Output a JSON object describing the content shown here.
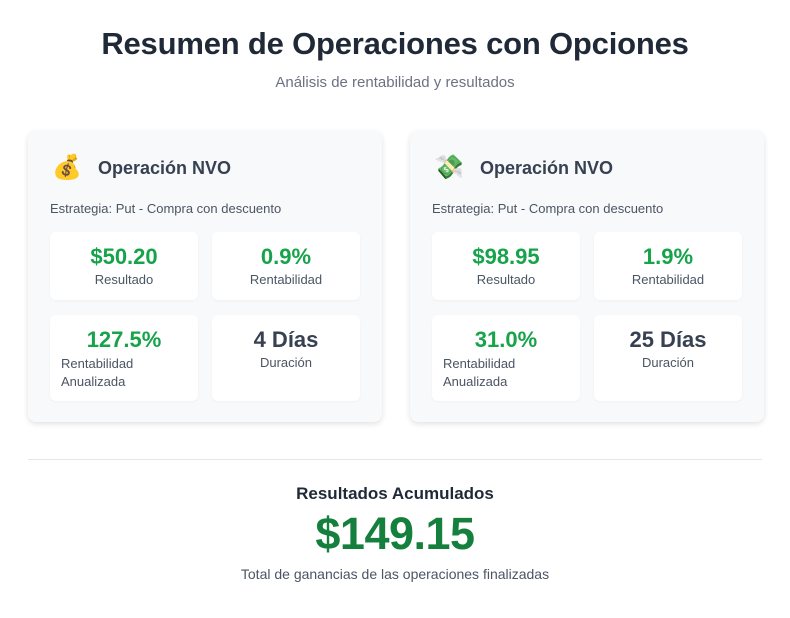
{
  "header": {
    "title": "Resumen de Operaciones con Opciones",
    "subtitle": "Análisis de rentabilidad y resultados"
  },
  "operations": [
    {
      "icon": "money-bag-icon",
      "icon_glyph": "💰",
      "title": "Operación NVO",
      "strategy": "Estrategia: Put - Compra con descuento",
      "result_value": "$50.20",
      "result_label": "Resultado",
      "return_value": "0.9%",
      "return_label": "Rentabilidad",
      "annualized_value": "127.5%",
      "annualized_label": "Rentabilidad Anualizada",
      "duration_value": "4 Días",
      "duration_label": "Duración"
    },
    {
      "icon": "money-with-wings-icon",
      "icon_glyph": "💸",
      "title": "Operación NVO",
      "strategy": "Estrategia: Put - Compra con descuento",
      "result_value": "$98.95",
      "result_label": "Resultado",
      "return_value": "1.9%",
      "return_label": "Rentabilidad",
      "annualized_value": "31.0%",
      "annualized_label": "Rentabilidad Anualizada",
      "duration_value": "25 Días",
      "duration_label": "Duración"
    }
  ],
  "accumulated": {
    "title": "Resultados Acumulados",
    "value": "$149.15",
    "note": "Total de ganancias de las operaciones finalizadas"
  },
  "colors": {
    "positive": "#16a34a",
    "total": "#15803d",
    "card_bg": "#f8f9fb"
  }
}
